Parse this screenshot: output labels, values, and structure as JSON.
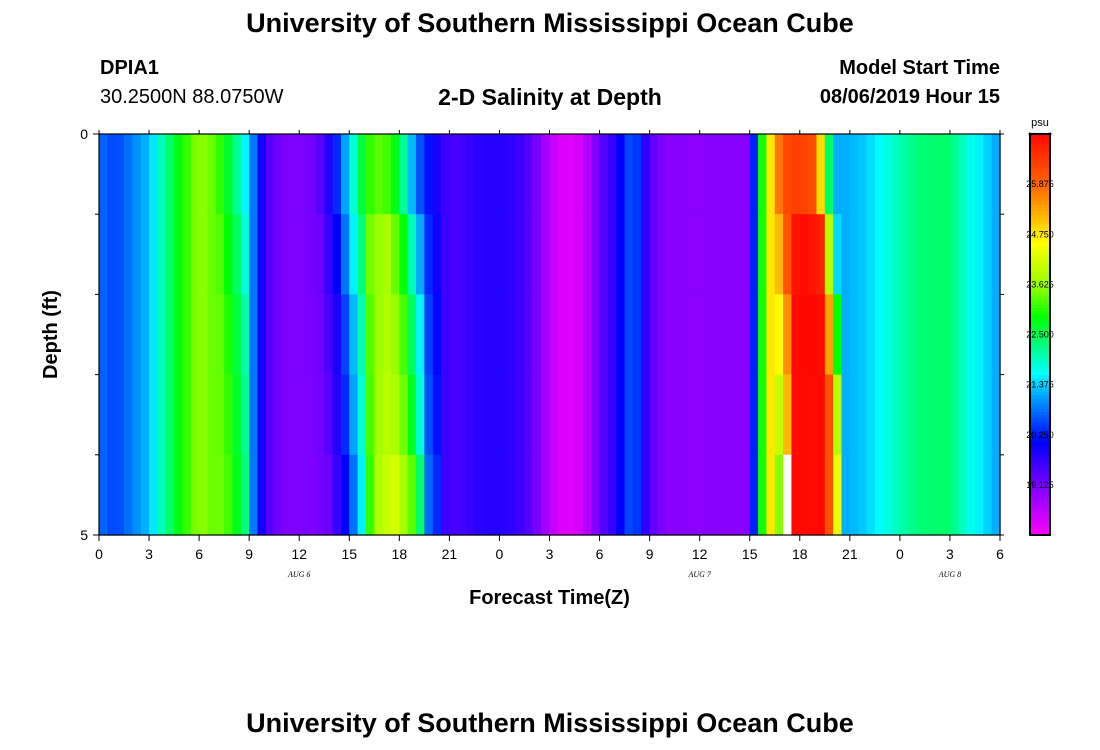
{
  "page": {
    "title_top": "University of Southern Mississippi Ocean Cube",
    "title_bottom": "University of Southern Mississippi Ocean Cube",
    "station_id": "DPIA1",
    "station_coords": "30.2500N 88.0750W",
    "model_start_label": "Model Start Time",
    "model_start_value": "08/06/2019 Hour 15"
  },
  "chart_data": {
    "type": "heatmap",
    "title": "2-D Salinity at Depth",
    "xlabel": "Forecast Time(Z)",
    "ylabel": "Depth (ft)",
    "x_hours": [
      0,
      54
    ],
    "x_tick_hours": [
      0,
      3,
      6,
      9,
      12,
      15,
      18,
      21,
      24,
      27,
      30,
      33,
      36,
      39,
      42,
      45,
      48,
      51,
      54
    ],
    "x_tick_labels": [
      "0",
      "3",
      "6",
      "9",
      "12",
      "15",
      "18",
      "21",
      "0",
      "3",
      "6",
      "9",
      "12",
      "15",
      "18",
      "21",
      "0",
      "3",
      "6"
    ],
    "date_labels": [
      {
        "hour": 12,
        "text": "AUG 6"
      },
      {
        "hour": 36,
        "text": "AUG 7"
      },
      {
        "hour": 51,
        "text": "AUG 8"
      }
    ],
    "ylim": [
      0,
      5
    ],
    "y_tick_labels": [
      {
        "depth": 0,
        "text": "0"
      },
      {
        "depth": 5,
        "text": "5"
      }
    ],
    "y_minor_ticks": [
      1,
      2,
      3,
      4
    ],
    "depth_levels": 5,
    "colorbar": {
      "unit": "psu",
      "min": 18.0,
      "max": 27.0,
      "tick_values": [
        19.125,
        20.25,
        21.375,
        22.5,
        23.625,
        24.75,
        25.875
      ],
      "tick_labels": [
        "19.125",
        "20.250",
        "21.375",
        "22.500",
        "23.625",
        "24.750",
        "25.875"
      ]
    },
    "salinity_hourly": [
      20.8,
      20.5,
      20.9,
      21.3,
      22.2,
      23.0,
      23.6,
      23.3,
      22.5,
      21.3,
      19.5,
      19.1,
      19.1,
      19.2,
      20.0,
      21.5,
      23.0,
      23.4,
      22.6,
      20.8,
      20.0,
      19.5,
      19.6,
      19.8,
      19.8,
      19.7,
      19.3,
      18.6,
      18.2,
      18.4,
      19.3,
      19.8,
      20.8,
      19.4,
      19.0,
      19.0,
      19.0,
      19.0,
      19.0,
      19.0,
      24.3,
      26.2,
      26.4,
      26.1,
      21.2,
      21.2,
      21.4,
      21.7,
      22.0,
      22.3,
      22.4,
      22.4,
      21.8,
      21.5,
      21.1
    ],
    "depth_offsets": [
      {
        "from_hour": 16.0,
        "to_hour": 19.5,
        "offsets": [
          0,
          0.4,
          0.5,
          0.6,
          0.8
        ]
      },
      {
        "from_hour": 41.5,
        "to_hour": 43.5,
        "offsets": [
          0,
          0.6,
          1.0,
          1.2,
          1.4
        ]
      }
    ],
    "shift_regions": [
      {
        "from_hour": 7.0,
        "to_hour": 9.0,
        "shifts": [
          0,
          0.2,
          0.4,
          0.5,
          0.6
        ]
      },
      {
        "from_hour": 12.5,
        "to_hour": 20.5,
        "shifts": [
          0,
          0.2,
          0.4,
          0.5,
          0.7
        ]
      },
      {
        "from_hour": 40.5,
        "to_hour": 44.5,
        "shifts": [
          0,
          0.3,
          0.6,
          0.8,
          0.9
        ]
      }
    ],
    "missing_cells": [
      {
        "hour": 41,
        "level": 4
      }
    ]
  }
}
